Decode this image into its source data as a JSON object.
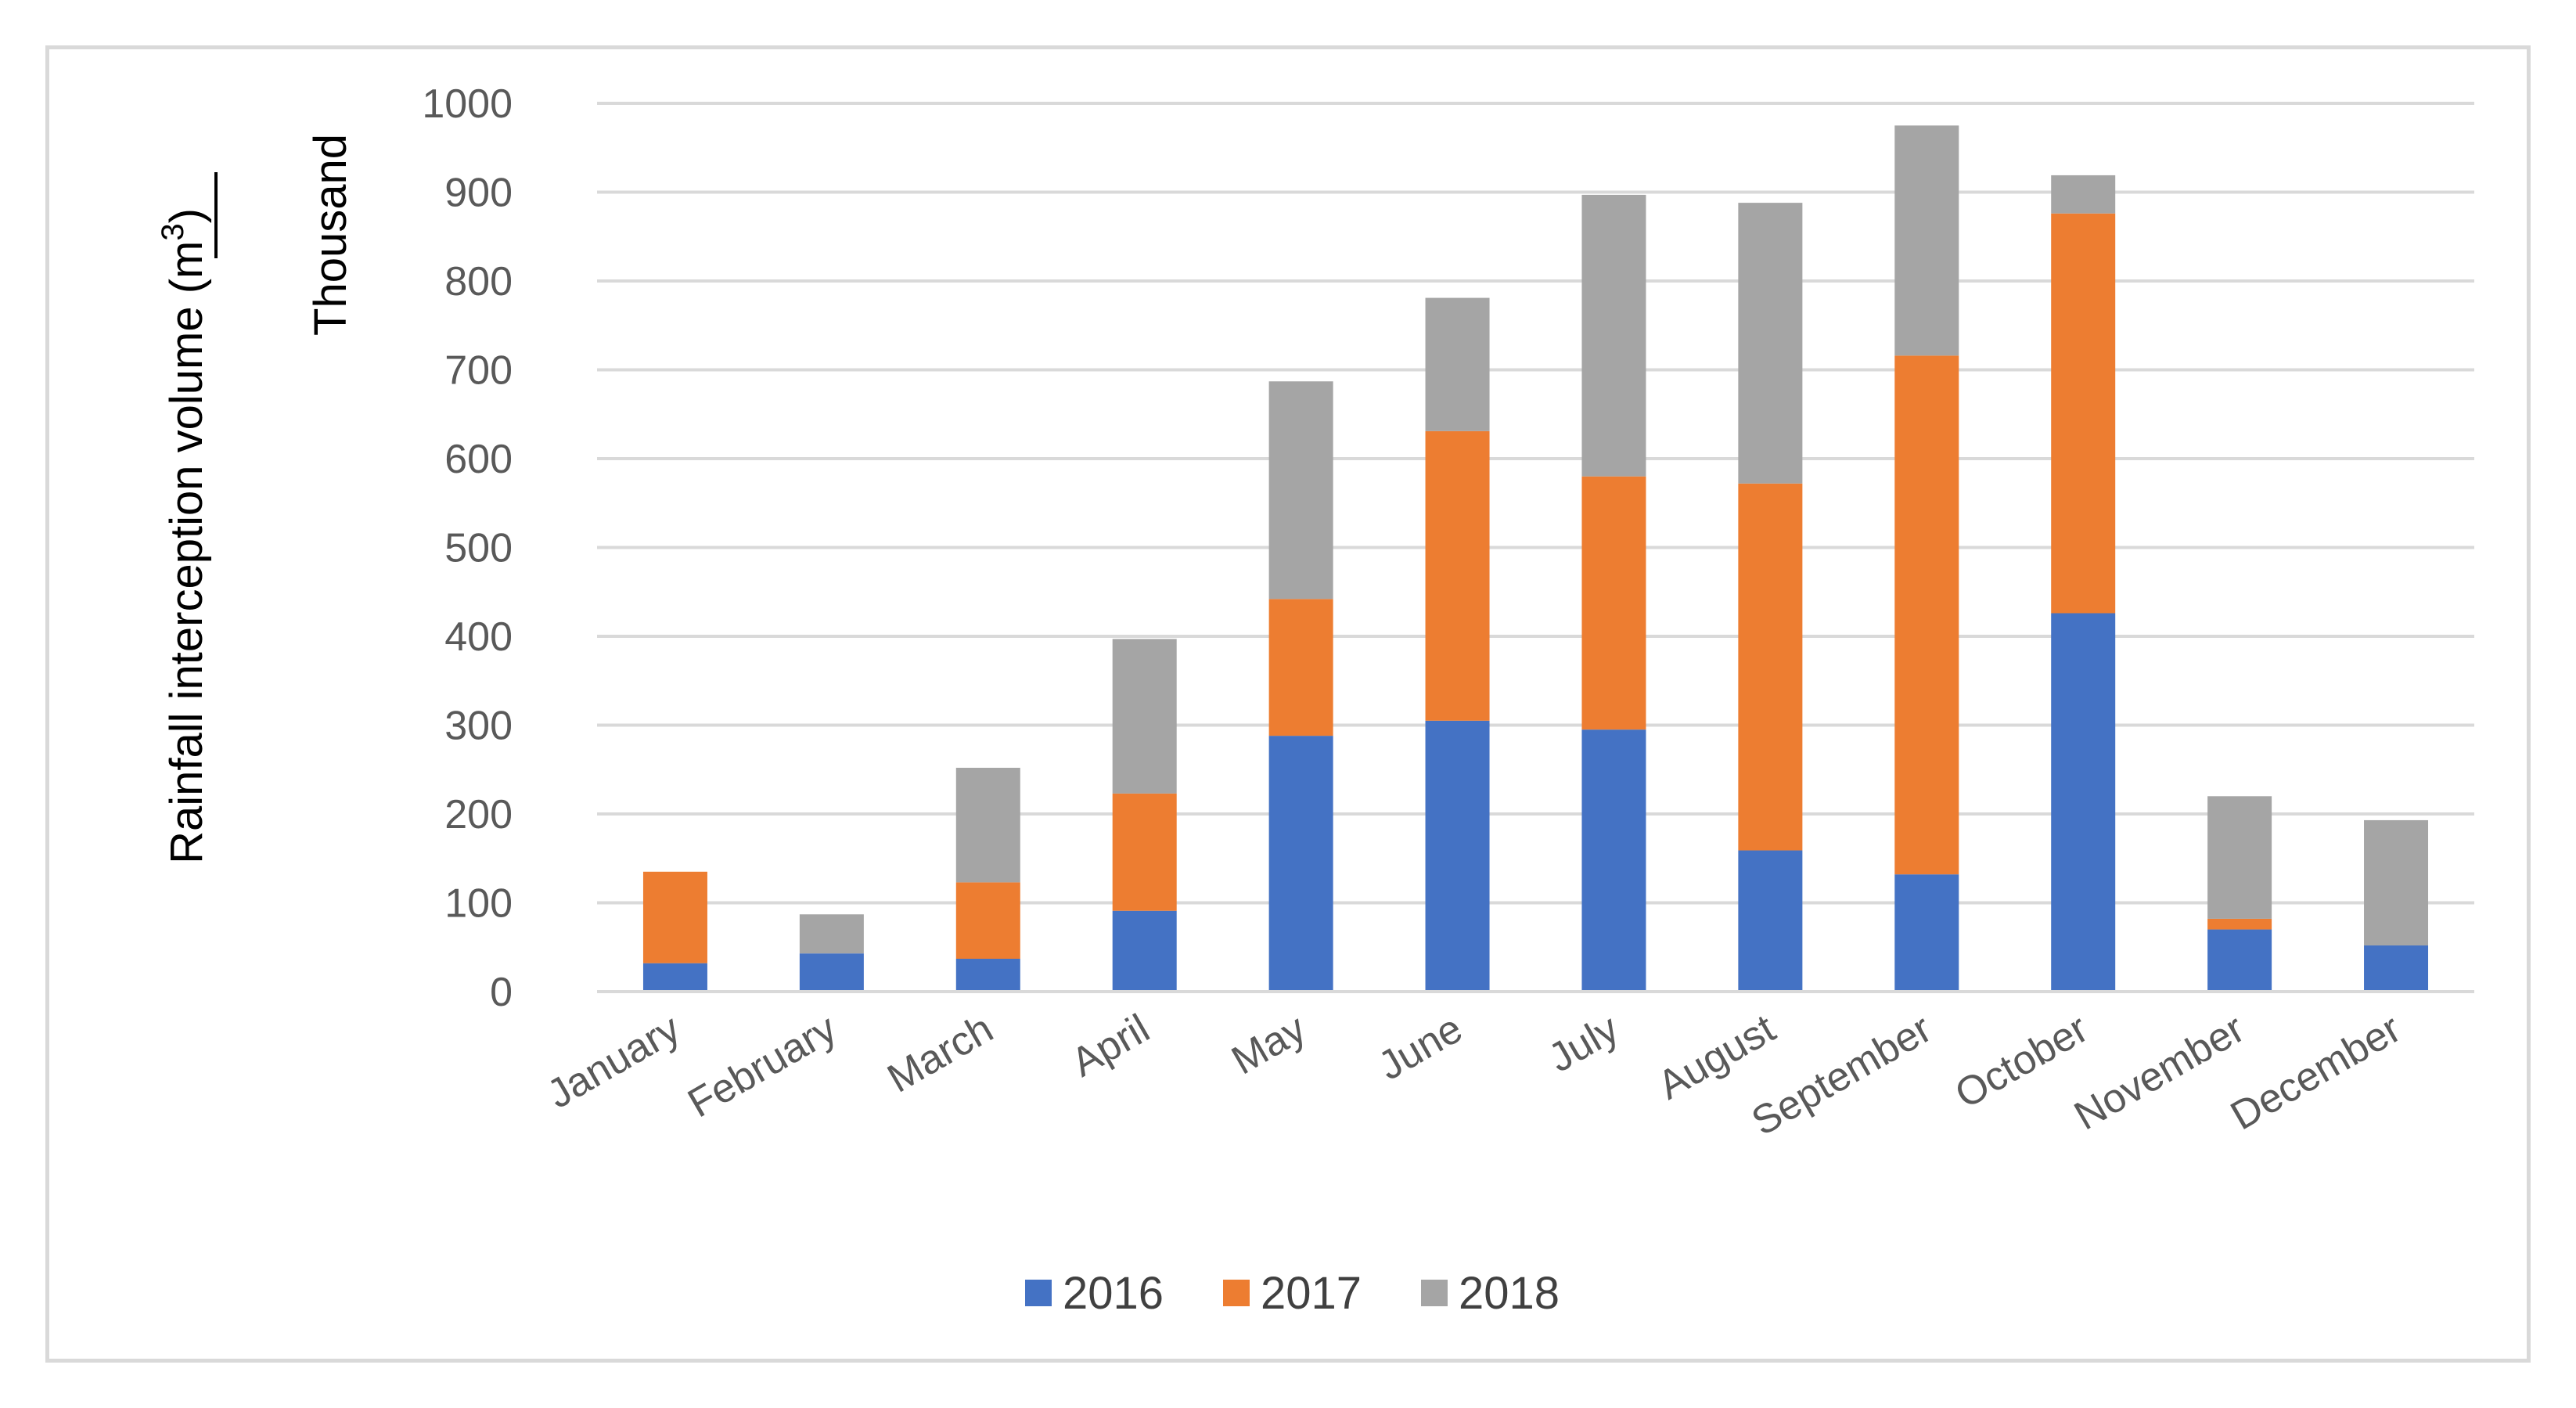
{
  "chart_data": {
    "type": "bar",
    "stacked": true,
    "title": "",
    "ylabel": "Rainfall interception volume (m",
    "ylabel_superscript": "3",
    "ylabel_suffix": ")",
    "unit_label": "Thousand",
    "xlabel": "",
    "ylim": [
      0,
      1000
    ],
    "yticks": [
      "0",
      "100",
      "200",
      "300",
      "400",
      "500",
      "600",
      "700",
      "800",
      "900",
      "1000"
    ],
    "ytick_values": [
      0,
      100,
      200,
      300,
      400,
      500,
      600,
      700,
      800,
      900,
      1000
    ],
    "grid": true,
    "legend_position": "bottom",
    "categories": [
      "January",
      "February",
      "March",
      "April",
      "May",
      "June",
      "July",
      "August",
      "September",
      "October",
      "November",
      "December"
    ],
    "series": [
      {
        "name": "2016",
        "color": "#4472c4",
        "values": [
          32,
          43,
          37,
          91,
          288,
          305,
          295,
          159,
          132,
          426,
          70,
          52
        ]
      },
      {
        "name": "2017",
        "color": "#ed7d31",
        "values": [
          103,
          0,
          86,
          132,
          154,
          326,
          285,
          413,
          584,
          450,
          12,
          0
        ]
      },
      {
        "name": "2018",
        "color": "#a5a5a5",
        "values": [
          0,
          44,
          129,
          174,
          245,
          150,
          317,
          316,
          259,
          43,
          138,
          141
        ]
      }
    ]
  }
}
